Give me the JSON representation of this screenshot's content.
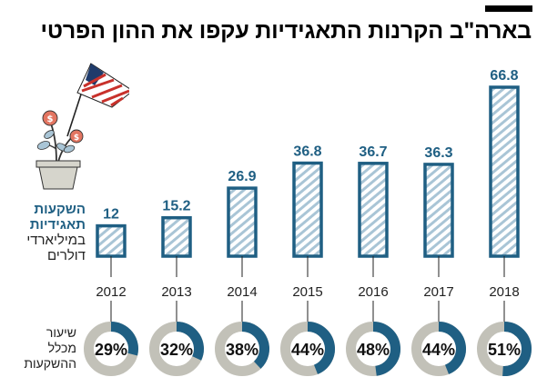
{
  "title": "בארה\"ב הקרנות התאגידיות עקפו את ההון הפרטי",
  "y_label_lines": [
    "השקעות",
    "תאגידיות",
    "במיליארדי",
    "דולרים"
  ],
  "share_label_lines": [
    "שיעור",
    "מכלל",
    "ההשקעות"
  ],
  "colors": {
    "accent": "#1f5f83",
    "bar_stroke": "#1f5f83",
    "hatch": "#a9c5d6",
    "ring_bg": "#c2c1b8"
  },
  "chart_data": {
    "type": "bar",
    "categories": [
      "2012",
      "2013",
      "2014",
      "2015",
      "2016",
      "2017",
      "2018"
    ],
    "values": [
      12,
      15.2,
      26.9,
      36.8,
      36.7,
      36.3,
      66.8
    ],
    "value_labels": [
      "12",
      "15.2",
      "26.9",
      "36.8",
      "36.7",
      "36.3",
      "66.8"
    ],
    "share_percent": [
      29,
      32,
      38,
      44,
      48,
      44,
      51
    ],
    "share_labels": [
      "29%",
      "32%",
      "38%",
      "44%",
      "48%",
      "44%",
      "51%"
    ],
    "ylim": [
      0,
      66.8
    ]
  }
}
